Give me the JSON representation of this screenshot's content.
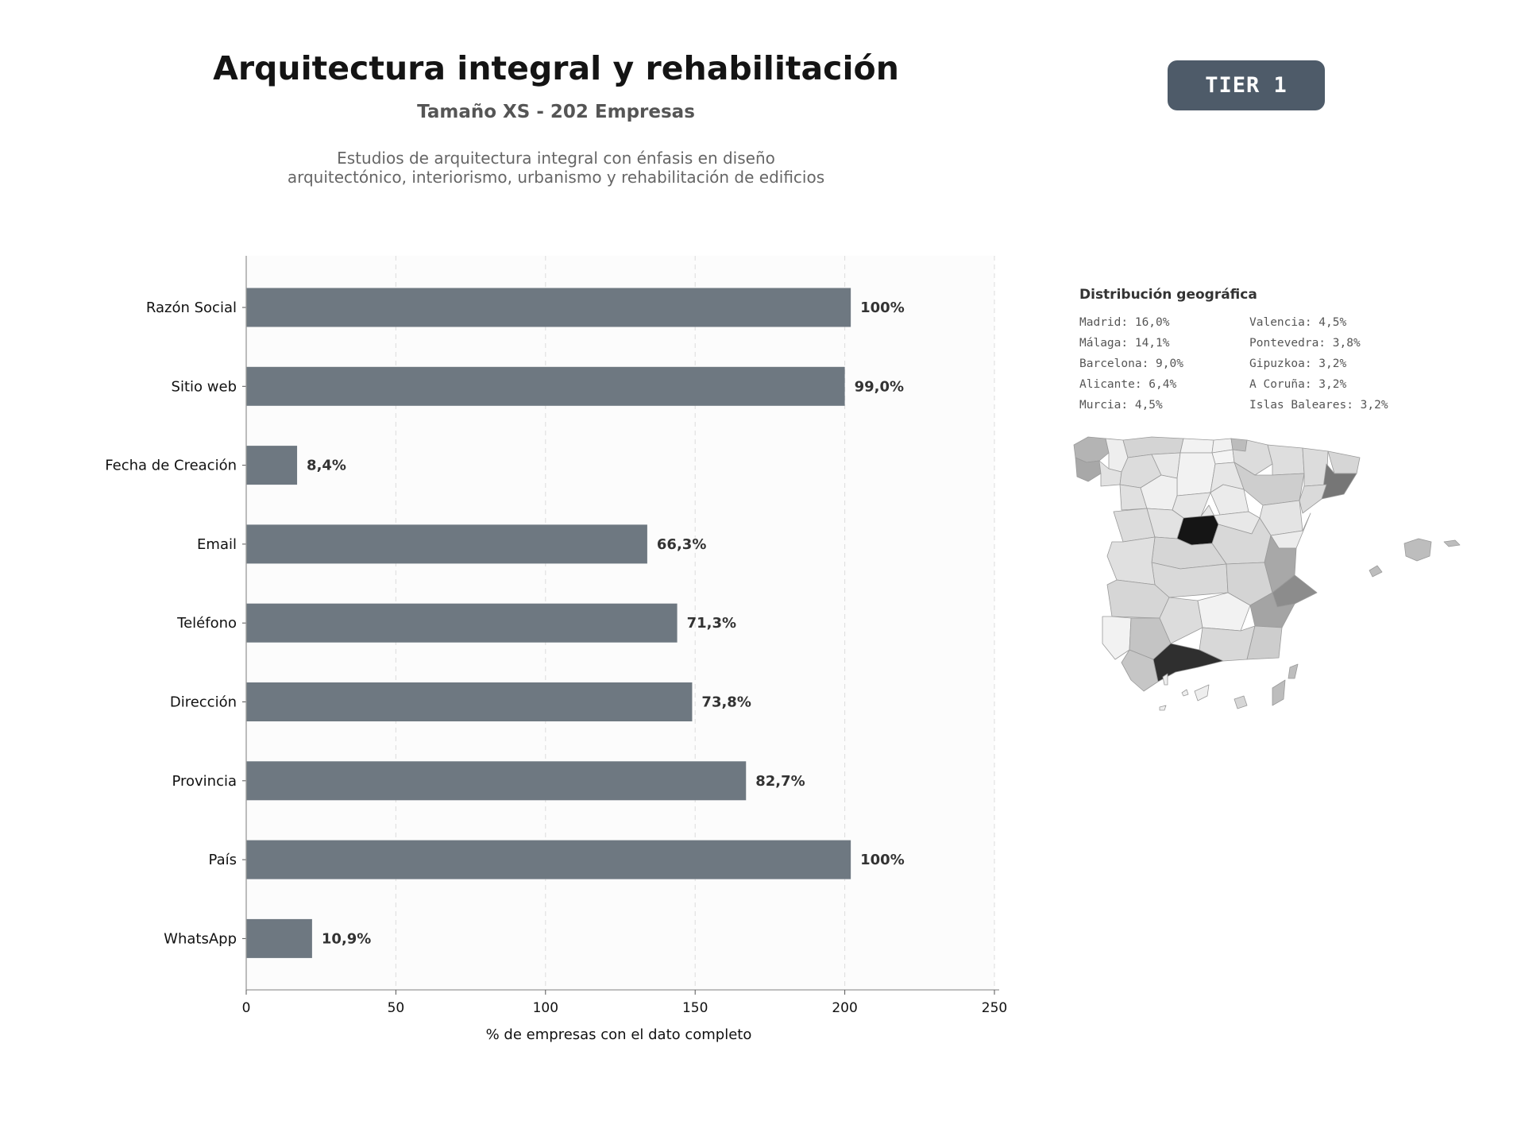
{
  "header": {
    "title": "Arquitectura integral y rehabilitación",
    "subtitle": "Tamaño XS - 202 Empresas",
    "description_lines": [
      "Estudios de arquitectura integral con énfasis en diseño",
      "arquitectónico, interiorismo, urbanismo y rehabilitación de edificios"
    ],
    "tier_badge": "TIER 1"
  },
  "chart_data": {
    "type": "bar",
    "orientation": "horizontal",
    "categories": [
      "Razón Social",
      "Sitio web",
      "Fecha de Creación",
      "Email",
      "Teléfono",
      "Dirección",
      "Provincia",
      "País",
      "WhatsApp"
    ],
    "values": [
      202,
      200,
      17,
      134,
      144,
      149,
      167,
      202,
      22
    ],
    "data_labels": [
      "100%",
      "99,0%",
      "8,4%",
      "66,3%",
      "71,3%",
      "73,8%",
      "82,7%",
      "100%",
      "10,9%"
    ],
    "xlabel": "% de empresas con el dato completo",
    "ylabel": "",
    "xlim": [
      0,
      250
    ],
    "xticks": [
      0,
      50,
      100,
      150,
      200,
      250
    ],
    "grid": "vertical dashed",
    "bar_color": "#6e7881",
    "panel_color": "#fcfcfc"
  },
  "geo": {
    "title": "Distribución geográfica",
    "entries": [
      "Madrid: 16,0%",
      "Málaga: 14,1%",
      "Barcelona: 9,0%",
      "Alicante: 6,4%",
      "Murcia: 4,5%",
      "Valencia: 4,5%",
      "Pontevedra: 3,8%",
      "Gipuzkoa: 3,2%",
      "A Coruña: 3,2%",
      "Islas Baleares: 3,2%"
    ]
  },
  "colors": {
    "badge": "#4e5b69",
    "map_high": "#111111",
    "map_low": "#f0f0f0"
  }
}
